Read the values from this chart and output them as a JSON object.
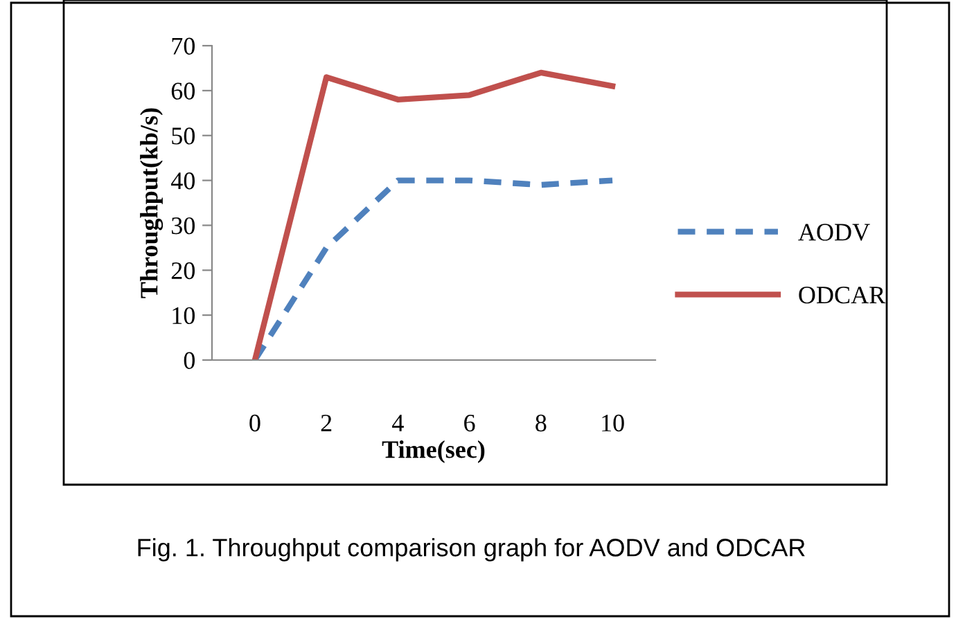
{
  "chart_data": {
    "type": "line",
    "xlabel": "Time(sec)",
    "ylabel": "Throughput(kb/s)",
    "categories": [
      "0",
      "2",
      "4",
      "6",
      "8",
      "10"
    ],
    "series": [
      {
        "name": "AODV",
        "color": "#4f81bd",
        "values": [
          0,
          25,
          40,
          40,
          39,
          40
        ],
        "line_style": "dashed"
      },
      {
        "name": "ODCAR",
        "color": "#c0504d",
        "values": [
          0,
          63,
          58,
          59,
          64,
          61
        ],
        "line_style": "solid"
      }
    ],
    "ylim": [
      0,
      70
    ],
    "yticks": [
      0,
      10,
      20,
      30,
      40,
      50,
      60,
      70
    ],
    "grid": false,
    "legend": "right",
    "marker": "none",
    "annotations": [
      "Fig. 1. Throughput comparison graph for AODV and ODCAR"
    ]
  }
}
